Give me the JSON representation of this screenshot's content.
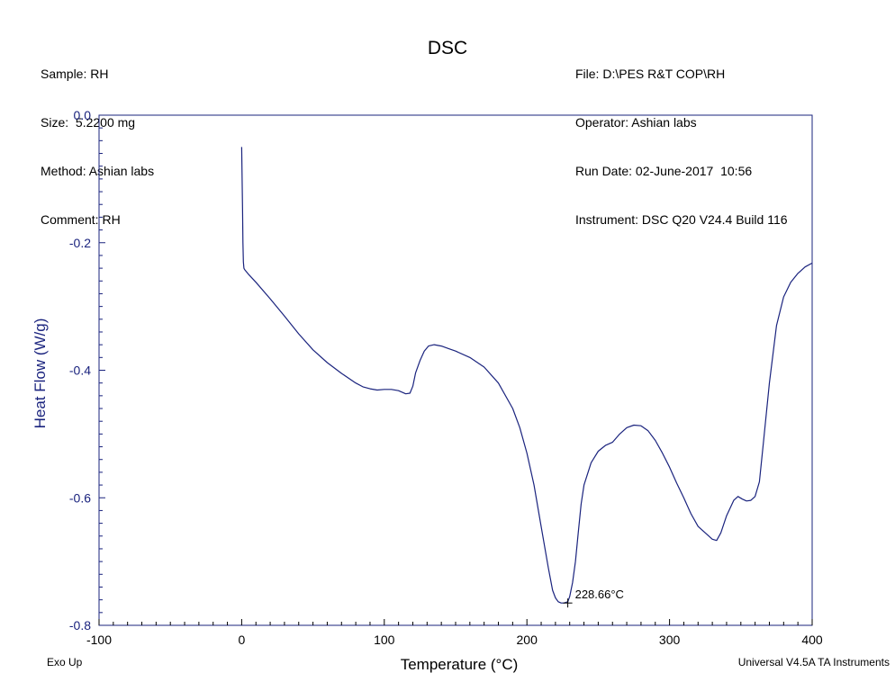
{
  "header": {
    "left": [
      "Sample: RH",
      "Size:  5.2200 mg",
      "Method: Ashian labs",
      "Comment: RH"
    ],
    "right": [
      "File: D:\\PES R&T COP\\RH",
      "Operator: Ashian labs",
      "Run Date: 02-June-2017  10:56",
      "Instrument: DSC Q20 V24.4 Build 116"
    ]
  },
  "footer": {
    "exo": "Exo Up",
    "software": "Universal V4.5A TA Instruments"
  },
  "colors": {
    "curve": "#1a237e",
    "axis": "#1a237e"
  },
  "chart_data": {
    "type": "line",
    "title": "DSC",
    "xlabel": "Temperature (°C)",
    "ylabel": "Heat Flow (W/g)",
    "xlim": [
      -100,
      400
    ],
    "ylim": [
      -0.8,
      0.0
    ],
    "xticks": [
      -100,
      0,
      100,
      200,
      300,
      400
    ],
    "xtick_labels": [
      "-100",
      "0",
      "100",
      "200",
      "300",
      "400"
    ],
    "yticks": [
      0.0,
      -0.2,
      -0.4,
      -0.6,
      -0.8
    ],
    "ytick_labels": [
      "0.0",
      "-0.2",
      "-0.4",
      "-0.6",
      "-0.8"
    ],
    "grid": false,
    "series": [
      {
        "x": [
          0,
          0.3,
          0.6,
          0.9,
          1.2,
          1.6,
          2,
          5,
          10,
          20,
          30,
          40,
          50,
          60,
          70,
          80,
          85,
          90,
          95,
          100,
          105,
          110,
          115,
          118,
          120,
          122,
          125,
          128,
          131,
          135,
          140,
          145,
          150,
          160,
          170,
          180,
          190,
          195,
          200,
          205,
          210,
          215,
          218,
          220,
          222,
          224,
          226,
          228.66,
          230,
          232,
          234,
          236,
          238,
          240,
          245,
          250,
          255,
          260,
          265,
          270,
          275,
          280,
          285,
          290,
          295,
          300,
          305,
          310,
          315,
          320,
          325,
          330,
          333,
          336,
          340,
          345,
          348,
          351,
          354,
          357,
          360,
          363,
          366,
          370,
          375,
          380,
          385,
          390,
          395,
          400
        ],
        "y": [
          -0.05,
          -0.1,
          -0.15,
          -0.2,
          -0.23,
          -0.24,
          -0.242,
          -0.25,
          -0.262,
          -0.288,
          -0.315,
          -0.343,
          -0.368,
          -0.388,
          -0.405,
          -0.42,
          -0.426,
          -0.429,
          -0.431,
          -0.43,
          -0.43,
          -0.432,
          -0.437,
          -0.436,
          -0.425,
          -0.404,
          -0.385,
          -0.37,
          -0.362,
          -0.36,
          -0.362,
          -0.366,
          -0.37,
          -0.38,
          -0.395,
          -0.42,
          -0.46,
          -0.49,
          -0.53,
          -0.58,
          -0.645,
          -0.71,
          -0.745,
          -0.757,
          -0.763,
          -0.765,
          -0.765,
          -0.763,
          -0.755,
          -0.733,
          -0.7,
          -0.655,
          -0.61,
          -0.58,
          -0.545,
          -0.527,
          -0.518,
          -0.513,
          -0.5,
          -0.49,
          -0.486,
          -0.487,
          -0.495,
          -0.51,
          -0.53,
          -0.552,
          -0.577,
          -0.6,
          -0.625,
          -0.645,
          -0.655,
          -0.665,
          -0.667,
          -0.655,
          -0.628,
          -0.604,
          -0.598,
          -0.602,
          -0.605,
          -0.604,
          -0.598,
          -0.575,
          -0.51,
          -0.42,
          -0.33,
          -0.285,
          -0.262,
          -0.248,
          -0.238,
          -0.232
        ]
      }
    ],
    "annotations": [
      {
        "x": 228.66,
        "y": -0.765,
        "text": "228.66°C"
      }
    ]
  }
}
